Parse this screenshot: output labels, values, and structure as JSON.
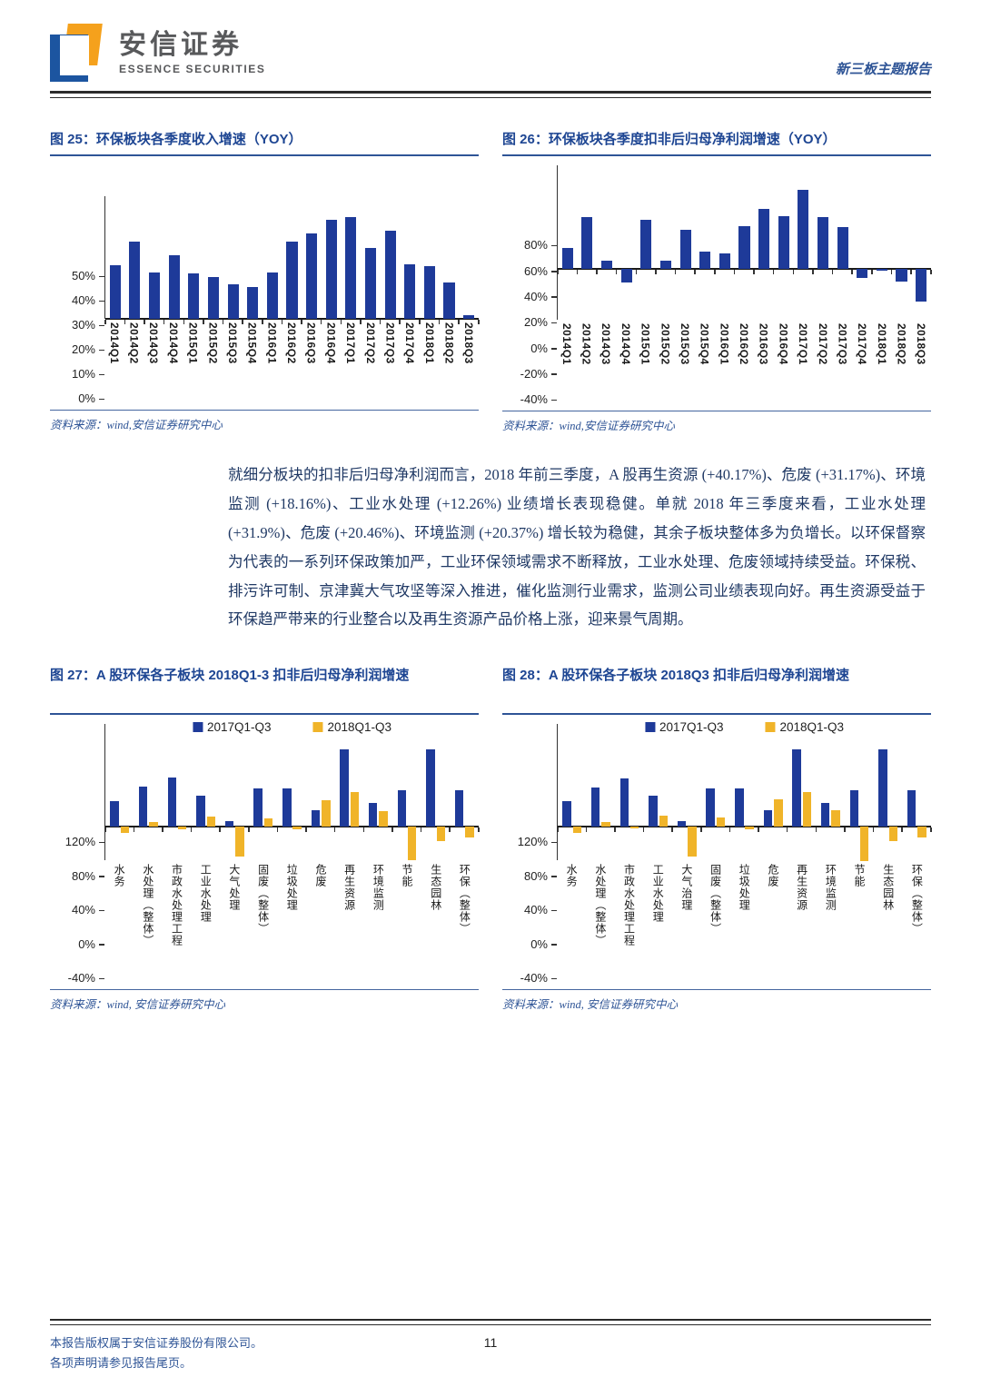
{
  "header": {
    "brand_cn": "安信证券",
    "brand_en": "ESSENCE SECURITIES",
    "report_type": "新三板主题报告"
  },
  "colors": {
    "navy": "#1E3A99",
    "gold": "#F0B429",
    "title_blue": "#1E4693",
    "accent_blue": "#2E5496"
  },
  "paragraph": "就细分板块的扣非后归母净利润而言，2018 年前三季度，A 股再生资源 (+40.17%)、危废 (+31.17%)、环境监测 (+18.16%)、工业水处理 (+12.26%) 业绩增长表现稳健。单就 2018 年三季度来看，工业水处理 (+31.9%)、危废 (+20.46%)、环境监测 (+20.37%) 增长较为稳健，其余子板块整体多为负增长。以环保督察为代表的一系列环保政策加严，工业环保领域需求不断释放，工业水处理、危废领域持续受益。环保税、排污许可制、京津冀大气攻坚等深入推进，催化监测行业需求，监测公司业绩表现向好。再生资源受益于环保趋严带来的行业整合以及再生资源产品价格上涨，迎来景气周期。",
  "footer": {
    "line1": "本报告版权属于安信证券股份有限公司。",
    "line2": "各项声明请参见报告尾页。",
    "page": "11"
  },
  "chart_data": [
    {
      "type": "bar",
      "title": "图 25：环保板块各季度收入增速（YOY）",
      "source": "资料来源：wind,安信证券研究中心",
      "categories": [
        "2014Q1",
        "2014Q2",
        "2014Q3",
        "2014Q4",
        "2015Q1",
        "2015Q2",
        "2015Q3",
        "2015Q4",
        "2016Q1",
        "2016Q2",
        "2016Q3",
        "2016Q4",
        "2017Q1",
        "2017Q2",
        "2017Q3",
        "2017Q4",
        "2018Q1",
        "2018Q2",
        "2018Q3"
      ],
      "values": [
        22,
        31.5,
        19,
        26,
        18.5,
        17,
        14,
        13,
        19,
        31.5,
        35,
        40.5,
        41.5,
        29,
        36,
        22.5,
        21.5,
        15,
        1.5
      ],
      "ylim": [
        0,
        50
      ],
      "yticks": [
        0,
        10,
        20,
        30,
        40,
        50
      ],
      "xlabel_style": "rot",
      "grid": false,
      "legend_position": "none"
    },
    {
      "type": "bar",
      "title": "图 26：环保板块各季度扣非后归母净利润增速（YOY）",
      "source": "资料来源：wind,安信证券研究中心",
      "categories": [
        "2014Q1",
        "2014Q2",
        "2014Q3",
        "2014Q4",
        "2015Q1",
        "2015Q2",
        "2015Q3",
        "2015Q4",
        "2016Q1",
        "2016Q2",
        "2016Q3",
        "2016Q4",
        "2017Q1",
        "2017Q2",
        "2017Q3",
        "2017Q4",
        "2018Q1",
        "2018Q2",
        "2018Q3"
      ],
      "values": [
        16,
        40,
        6,
        -11,
        38,
        6,
        30,
        13,
        12,
        33,
        46,
        41,
        61,
        40,
        32,
        -7,
        -2,
        -10,
        -26
      ],
      "ylim": [
        -40,
        80
      ],
      "yticks": [
        -40,
        -20,
        0,
        20,
        40,
        60,
        80
      ],
      "xlabel_style": "rot",
      "grid": false,
      "legend_position": "none"
    },
    {
      "type": "bar",
      "title": "图 27：A 股环保各子板块 2018Q1-3 扣非后归母净利润增速",
      "source": "资料来源：wind, 安信证券研究中心",
      "categories": [
        "水务",
        "水处理（整体）",
        "市政水处理工程",
        "工业水处理",
        "大气处理",
        "固废（整体）",
        "垃圾处理",
        "危废",
        "再生资源",
        "环境监测",
        "节能",
        "生态园林",
        "环保（整体）"
      ],
      "series": [
        {
          "name": "2017Q1-Q3",
          "values": [
            30,
            47,
            57,
            36,
            6,
            45,
            45,
            19,
            90,
            28,
            43,
            90,
            43
          ]
        },
        {
          "name": "2018Q1-Q3",
          "values": [
            -8,
            5,
            -3,
            12,
            -35,
            9,
            -3,
            31,
            40,
            18,
            -40,
            -17,
            -13
          ]
        }
      ],
      "ylim": [
        -40,
        120
      ],
      "yticks": [
        -40,
        0,
        40,
        80,
        120
      ],
      "xlabel_style": "vert",
      "grid": false,
      "legend_position": "top-center"
    },
    {
      "type": "bar",
      "title": "图 28：A 股环保各子板块 2018Q3 扣非后归母净利润增速",
      "source": "资料来源：wind, 安信证券研究中心",
      "categories": [
        "水务",
        "水处理（整体）",
        "市政水处理工程",
        "工业水处理",
        "大气治理",
        "固废（整体）",
        "垃圾处理",
        "危废",
        "再生资源",
        "环境监测",
        "节能",
        "生态园林",
        "环保（整体）"
      ],
      "series": [
        {
          "name": "2017Q1-Q3",
          "values": [
            30,
            46,
            56,
            36,
            6,
            45,
            45,
            19,
            90,
            28,
            42,
            90,
            42
          ]
        },
        {
          "name": "2018Q1-Q3",
          "values": [
            -8,
            5,
            -2,
            13,
            -35,
            10,
            -3,
            32,
            40,
            19,
            -41,
            -17,
            -13
          ]
        }
      ],
      "ylim": [
        -40,
        120
      ],
      "yticks": [
        -40,
        0,
        40,
        80,
        120
      ],
      "xlabel_style": "vert",
      "grid": false,
      "legend_position": "top-center"
    }
  ]
}
